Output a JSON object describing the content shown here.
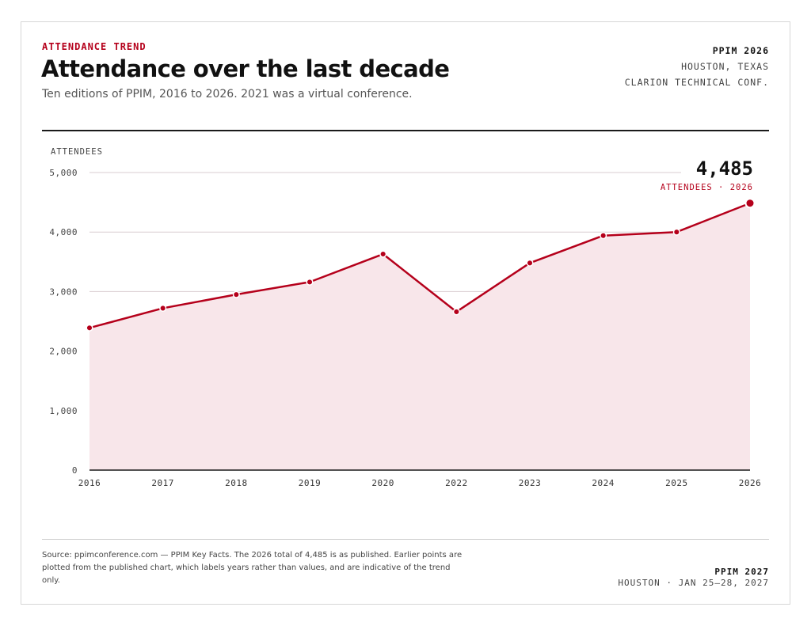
{
  "header": {
    "kicker": "ATTENDANCE TREND",
    "title": "Attendance over the last decade",
    "subtitle": "Ten editions of PPIM, 2016 to 2026. 2021 was a virtual conference."
  },
  "meta": {
    "edition": "PPIM 2026",
    "location": "HOUSTON, TEXAS",
    "venue": "CLARION TECHNICAL CONF."
  },
  "callout": {
    "value": "4,485",
    "label": "ATTENDEES · 2026"
  },
  "footer": {
    "source": "Source: ppimconference.com — PPIM Key Facts. The 2026 total of 4,485 is as published. Earlier points are plotted from the published chart, which labels years rather than values, and are indicative of the trend only.",
    "next_edition": "PPIM 2027",
    "next_details": "HOUSTON · JAN 25–28, 2027"
  },
  "colors": {
    "accent": "#b5001b",
    "area_fill": "#f8e6ea",
    "grid": "#d9cdd0",
    "text": "#111111"
  },
  "chart_data": {
    "type": "area",
    "ylabel": "ATTENDEES",
    "xlabel": "",
    "ylim": [
      0,
      5000
    ],
    "yticks": [
      0,
      1000,
      2000,
      3000,
      4000,
      5000
    ],
    "ytick_labels": [
      "0",
      "1,000",
      "2,000",
      "3,000",
      "4,000",
      "5,000"
    ],
    "categories": [
      "2016",
      "2017",
      "2018",
      "2019",
      "2020",
      "2022",
      "2023",
      "2024",
      "2025",
      "2026"
    ],
    "values": [
      2390,
      2720,
      2950,
      3160,
      3630,
      2660,
      3480,
      3940,
      4000,
      4485
    ],
    "grid": true,
    "highlight_index": 9
  }
}
